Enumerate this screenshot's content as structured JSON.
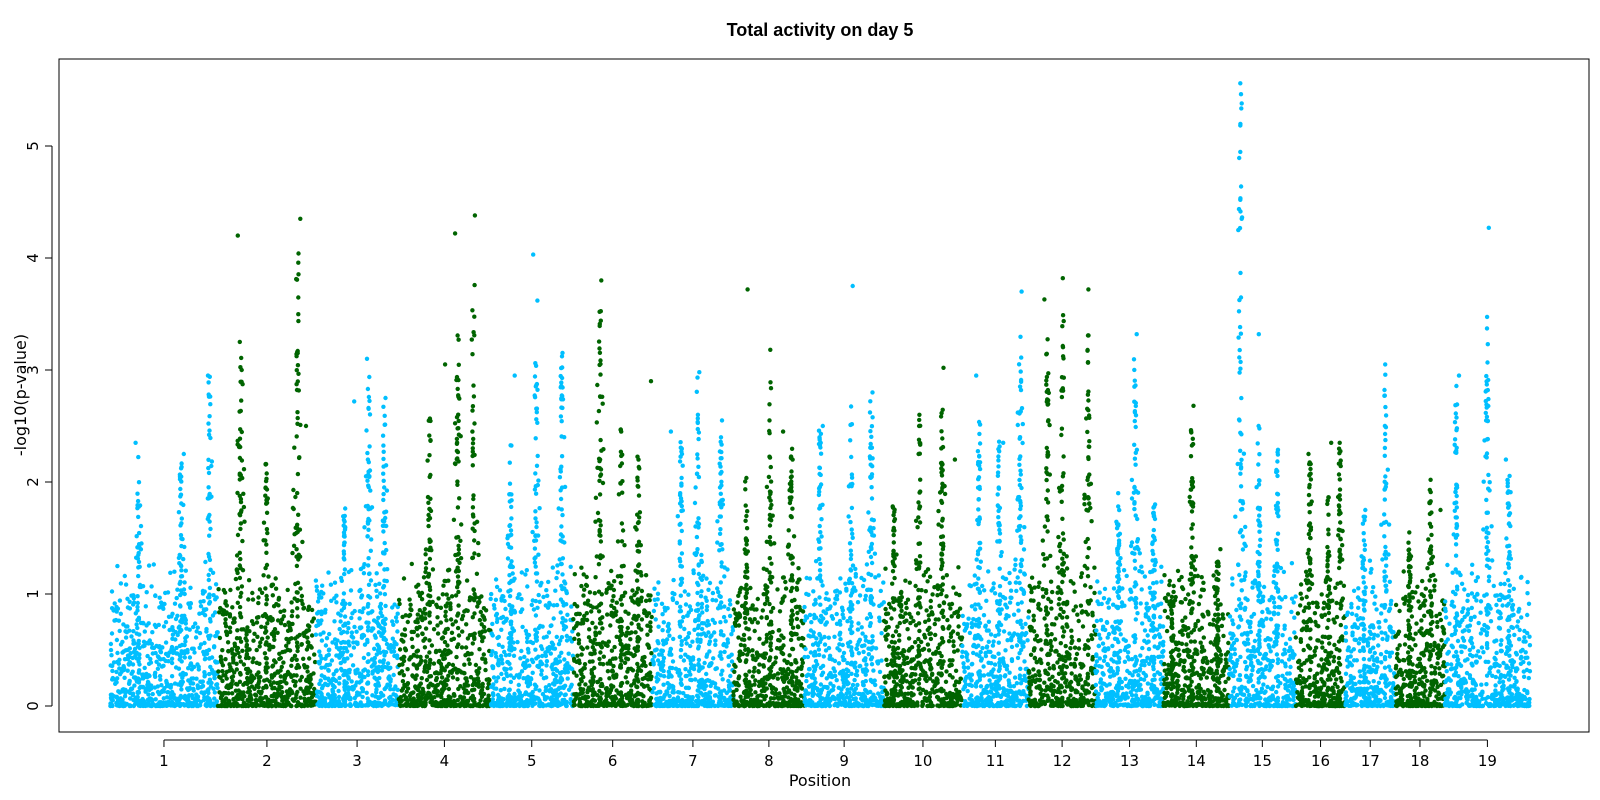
{
  "chart_data": {
    "type": "scatter",
    "subtype": "manhattan",
    "title": "Total activity on day 5",
    "xlabel": "Position",
    "ylabel": "-log10(p-value)",
    "ylim": [
      0,
      5.75
    ],
    "yticks": [
      0,
      1,
      2,
      3,
      4,
      5
    ],
    "xlim": [
      0,
      1000
    ],
    "grid": false,
    "legend": "none",
    "colors": {
      "odd": "#00BFFF",
      "even": "#006400"
    },
    "chromosomes": [
      {
        "name": "1",
        "start": 0,
        "end": 76,
        "peaks": [
          [
            20,
            2.3
          ],
          [
            50,
            2.2
          ],
          [
            70,
            2.95
          ]
        ],
        "hits": [
          [
            18,
            2.35
          ],
          [
            52,
            2.25
          ],
          [
            69,
            2.95
          ]
        ]
      },
      {
        "name": "2",
        "start": 76,
        "end": 145,
        "peaks": [
          [
            92,
            3.4
          ],
          [
            110,
            2.2
          ],
          [
            132,
            4.05
          ]
        ],
        "hits": [
          [
            90,
            4.2
          ],
          [
            134,
            4.35
          ],
          [
            138,
            2.5
          ]
        ]
      },
      {
        "name": "3",
        "start": 145,
        "end": 203,
        "peaks": [
          [
            165,
            1.8
          ],
          [
            182,
            3.0
          ],
          [
            193,
            2.7
          ]
        ],
        "hits": [
          [
            181,
            3.1
          ],
          [
            172,
            2.72
          ],
          [
            194,
            2.75
          ]
        ]
      },
      {
        "name": "4",
        "start": 203,
        "end": 268,
        "peaks": [
          [
            225,
            2.6
          ],
          [
            245,
            3.5
          ],
          [
            256,
            3.8
          ]
        ],
        "hits": [
          [
            243,
            4.22
          ],
          [
            257,
            4.38
          ],
          [
            236,
            3.05
          ]
        ]
      },
      {
        "name": "5",
        "start": 268,
        "end": 326,
        "peaks": [
          [
            282,
            2.4
          ],
          [
            300,
            3.1
          ],
          [
            318,
            3.25
          ]
        ],
        "hits": [
          [
            298,
            4.03
          ],
          [
            301,
            3.62
          ],
          [
            285,
            2.95
          ]
        ]
      },
      {
        "name": "6",
        "start": 326,
        "end": 382,
        "peaks": [
          [
            345,
            3.8
          ],
          [
            360,
            2.5
          ],
          [
            372,
            2.3
          ]
        ],
        "hits": [
          [
            346,
            3.8
          ],
          [
            381,
            2.9
          ],
          [
            360,
            2.45
          ]
        ]
      },
      {
        "name": "7",
        "start": 382,
        "end": 439,
        "peaks": [
          [
            402,
            2.5
          ],
          [
            414,
            2.95
          ],
          [
            430,
            2.5
          ]
        ],
        "hits": [
          [
            415,
            2.98
          ],
          [
            395,
            2.45
          ],
          [
            431,
            2.55
          ]
        ]
      },
      {
        "name": "8",
        "start": 439,
        "end": 489,
        "peaks": [
          [
            448,
            2.1
          ],
          [
            465,
            3.1
          ],
          [
            480,
            2.4
          ]
        ],
        "hits": [
          [
            449,
            3.72
          ],
          [
            465,
            3.18
          ],
          [
            474,
            2.45
          ]
        ]
      },
      {
        "name": "9",
        "start": 489,
        "end": 545,
        "peaks": [
          [
            500,
            2.5
          ],
          [
            522,
            2.7
          ],
          [
            536,
            2.8
          ]
        ],
        "hits": [
          [
            523,
            3.75
          ],
          [
            502,
            2.5
          ],
          [
            537,
            2.8
          ]
        ]
      },
      {
        "name": "10",
        "start": 545,
        "end": 600,
        "peaks": [
          [
            552,
            1.8
          ],
          [
            570,
            2.6
          ],
          [
            586,
            3.0
          ]
        ],
        "hits": [
          [
            587,
            3.02
          ],
          [
            570,
            2.6
          ],
          [
            595,
            2.2
          ]
        ]
      },
      {
        "name": "11",
        "start": 600,
        "end": 647,
        "peaks": [
          [
            612,
            2.6
          ],
          [
            626,
            2.4
          ],
          [
            641,
            3.3
          ]
        ],
        "hits": [
          [
            642,
            3.7
          ],
          [
            610,
            2.95
          ],
          [
            629,
            2.35
          ]
        ]
      },
      {
        "name": "12",
        "start": 647,
        "end": 694,
        "peaks": [
          [
            660,
            3.3
          ],
          [
            671,
            3.5
          ],
          [
            689,
            3.55
          ]
        ],
        "hits": [
          [
            658,
            3.63
          ],
          [
            671,
            3.82
          ],
          [
            689,
            3.72
          ]
        ]
      },
      {
        "name": "13",
        "start": 694,
        "end": 742,
        "peaks": [
          [
            710,
            1.9
          ],
          [
            722,
            3.3
          ],
          [
            735,
            1.8
          ]
        ],
        "hits": [
          [
            723,
            3.32
          ],
          [
            710,
            1.9
          ],
          [
            736,
            1.8
          ]
        ]
      },
      {
        "name": "14",
        "start": 742,
        "end": 788,
        "peaks": [
          [
            748,
            1.0
          ],
          [
            762,
            2.5
          ],
          [
            780,
            1.4
          ]
        ],
        "hits": [
          [
            763,
            2.68
          ],
          [
            770,
            1.1
          ],
          [
            782,
            1.4
          ]
        ]
      },
      {
        "name": "15",
        "start": 788,
        "end": 835,
        "peaks": [
          [
            796,
            5.55
          ],
          [
            809,
            2.5
          ],
          [
            822,
            2.3
          ]
        ],
        "hits": [
          [
            796,
            5.56
          ],
          [
            797,
            5.38
          ],
          [
            796,
            4.52
          ],
          [
            797,
            4.35
          ],
          [
            809,
            3.32
          ]
        ]
      },
      {
        "name": "16",
        "start": 835,
        "end": 870,
        "peaks": [
          [
            845,
            2.2
          ],
          [
            858,
            1.9
          ],
          [
            866,
            2.3
          ]
        ],
        "hits": [
          [
            844,
            2.25
          ],
          [
            866,
            2.35
          ],
          [
            860,
            2.35
          ]
        ]
      },
      {
        "name": "17",
        "start": 870,
        "end": 905,
        "peaks": [
          [
            883,
            1.75
          ],
          [
            898,
            3.0
          ]
        ],
        "hits": [
          [
            898,
            3.05
          ],
          [
            884,
            1.75
          ]
        ]
      },
      {
        "name": "18",
        "start": 905,
        "end": 940,
        "peaks": [
          [
            915,
            1.5
          ],
          [
            930,
            2.0
          ]
        ],
        "hits": [
          [
            930,
            2.02
          ],
          [
            915,
            1.55
          ],
          [
            937,
            1.75
          ]
        ]
      },
      {
        "name": "19",
        "start": 940,
        "end": 1000,
        "peaks": [
          [
            948,
            2.9
          ],
          [
            970,
            3.5
          ],
          [
            985,
            2.2
          ]
        ],
        "hits": [
          [
            971,
            4.27
          ],
          [
            950,
            2.95
          ],
          [
            983,
            2.2
          ]
        ]
      }
    ]
  }
}
